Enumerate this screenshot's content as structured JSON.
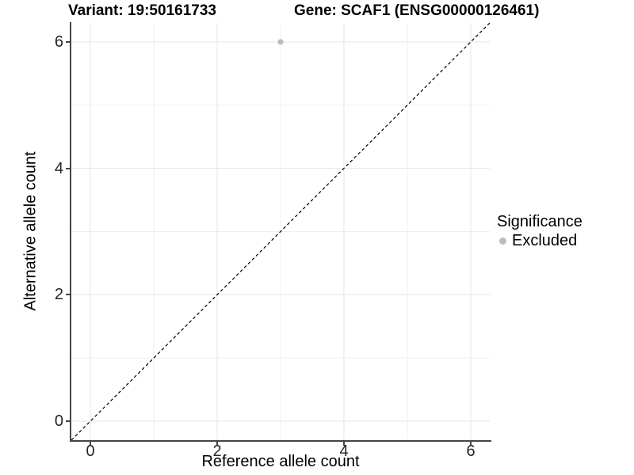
{
  "titles": {
    "variant": "Variant: 19:50161733",
    "gene": "Gene: SCAF1 (ENSG00000126461)"
  },
  "axes": {
    "x_title": "Reference allele count",
    "y_title": "Alternative allele count",
    "x_tick_labels": [
      "0",
      "2",
      "4",
      "6"
    ],
    "y_tick_labels": [
      "0",
      "2",
      "4",
      "6"
    ]
  },
  "legend": {
    "title": "Significance",
    "items": [
      {
        "label": "Excluded",
        "color": "#bcbcbc"
      }
    ]
  },
  "colors": {
    "axis_line": "#454545",
    "tick_label": "#262626",
    "grid_major": "#e4e4e4",
    "grid_minor": "#efefef",
    "identity_line": "#000000",
    "point": "#bcbcbc",
    "background": "#ffffff"
  },
  "chart_data": {
    "type": "scatter",
    "title": "Variant: 19:50161733    Gene: SCAF1 (ENSG00000126461)",
    "xlabel": "Reference allele count",
    "ylabel": "Alternative allele count",
    "xlim": [
      -0.3,
      6.3
    ],
    "ylim": [
      -0.3,
      6.3
    ],
    "xticks": [
      0,
      2,
      4,
      6
    ],
    "yticks": [
      0,
      2,
      4,
      6
    ],
    "grid": {
      "major": [
        0,
        2,
        4,
        6
      ],
      "minor": [
        1,
        3,
        5
      ],
      "visible": true
    },
    "identity_line": {
      "slope": 1,
      "intercept": 0,
      "style": "dashed",
      "color": "#000000"
    },
    "legend_title": "Significance",
    "legend_position": "right",
    "series": [
      {
        "name": "Excluded",
        "color": "#bcbcbc",
        "points": [
          {
            "x": 3,
            "y": 6
          }
        ]
      }
    ]
  }
}
